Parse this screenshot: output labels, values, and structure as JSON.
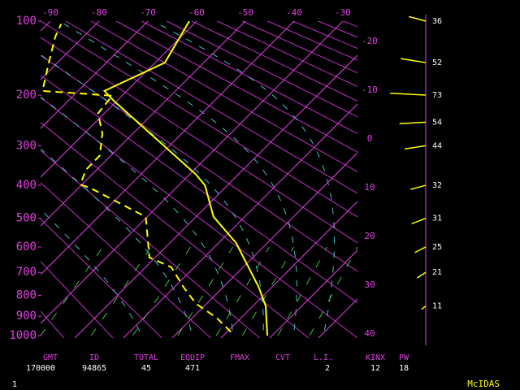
{
  "chart_data": {
    "type": "skewt",
    "ylim": [
      100,
      1000
    ],
    "yticks": [
      100,
      200,
      300,
      400,
      500,
      600,
      700,
      800,
      900,
      1000
    ],
    "xticks": [
      -90,
      -80,
      -70,
      -60,
      -50,
      -40,
      -30
    ],
    "isotherm_labels": [
      -20,
      -10,
      0,
      10,
      20,
      30,
      40
    ],
    "series": [
      {
        "color": "#ffff00",
        "style": "solid",
        "y": [
          1000,
          850,
          765,
          585,
          495,
          400,
          370,
          210,
          193,
          150,
          100
        ],
        "values": [
          19,
          12.6,
          7.4,
          -6.4,
          -16.4,
          -24.6,
          -28.8,
          -60.6,
          -64.6,
          -58,
          -61.5
        ]
      },
      {
        "color": "#ffff00",
        "style": "dashed",
        "y": [
          981,
          906,
          839,
          765,
          679,
          640,
          495,
          470,
          407,
          398,
          359,
          323,
          273,
          233,
          201,
          193,
          151,
          117,
          103
        ],
        "values": [
          10.8,
          4.8,
          -2.2,
          -8,
          -14.7,
          -21.2,
          -30.3,
          -35,
          -47.7,
          -50.3,
          -52.2,
          -52.3,
          -56.3,
          -61.3,
          -62,
          -77.3,
          -81.7,
          -85.8,
          -87.2
        ]
      }
    ],
    "wind": {
      "y": [
        100,
        150,
        200,
        250,
        300,
        400,
        500,
        600,
        700,
        850
      ],
      "speed": [
        36,
        52,
        73,
        54,
        44,
        32,
        31,
        25,
        21,
        11
      ]
    },
    "indices": [
      {
        "label": "GMT",
        "value": 170000
      },
      {
        "label": "ID",
        "value": 94865
      },
      {
        "label": "TOTAL",
        "value": 45
      },
      {
        "label": "EQUIP",
        "value": 471
      },
      {
        "label": "FMAX"
      },
      {
        "label": "CVT"
      },
      {
        "label": "L.I.",
        "value": 2
      },
      {
        "label": "KINX",
        "value": 12
      },
      {
        "label": "PW",
        "value": 18
      }
    ]
  },
  "footer": {
    "page": 1,
    "product": "McIDAS"
  }
}
